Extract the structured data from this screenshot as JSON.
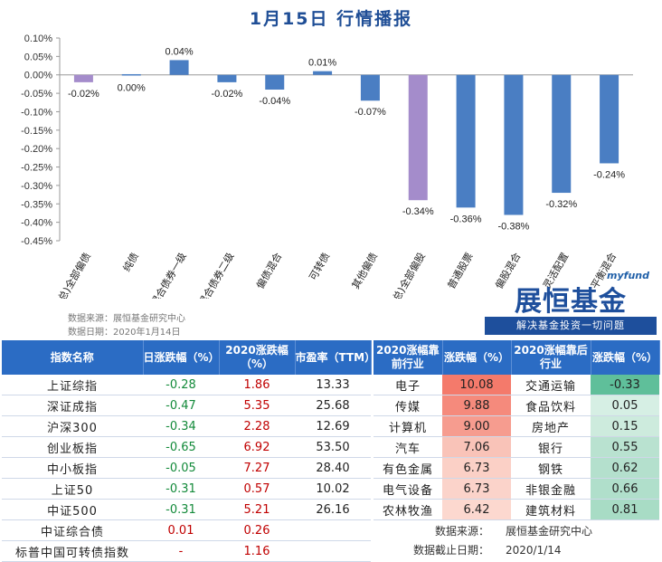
{
  "title": "1月15日  行情播报",
  "source_label": "数据来源：展恒基金研究中心",
  "date_label": "数据日期：2020年1月14日",
  "logo": {
    "small": "myfund",
    "big": "展恒基金",
    "slogan": "解决基金投资一切问题"
  },
  "chart_data": {
    "type": "bar",
    "categories": [
      "(总)全部偏债",
      "纯债",
      "混合债券一级",
      "混合债券二级",
      "偏债混合",
      "可转债",
      "其他偏债",
      "(总)全部偏股",
      "普通股票",
      "偏股混合",
      "灵活配置",
      "平衡混合"
    ],
    "values": [
      -0.02,
      0.0,
      0.04,
      -0.02,
      -0.04,
      0.01,
      -0.07,
      -0.34,
      -0.36,
      -0.38,
      -0.32,
      -0.24
    ],
    "value_labels": [
      "-0.02%",
      "0.00%",
      "0.04%",
      "-0.02%",
      "-0.04%",
      "0.01%",
      "-0.07%",
      "-0.34%",
      "-0.36%",
      "-0.38%",
      "-0.32%",
      "-0.24%"
    ],
    "highlight_indices": [
      0,
      7
    ],
    "colors": {
      "bar": "#4a7ec3",
      "highlight": "#a48ccb",
      "axis": "#999999"
    },
    "ylim": [
      -0.45,
      0.1
    ],
    "yticks": [
      0.1,
      0.05,
      0.0,
      -0.05,
      -0.1,
      -0.15,
      -0.2,
      -0.25,
      -0.3,
      -0.35,
      -0.4,
      -0.45
    ],
    "ytick_labels": [
      "0.10%",
      "0.05%",
      "0.00%",
      "-0.05%",
      "-0.10%",
      "-0.15%",
      "-0.20%",
      "-0.25%",
      "-0.30%",
      "-0.35%",
      "-0.40%",
      "-0.45%"
    ],
    "grid": false
  },
  "index_table": {
    "headers": [
      "指数名称",
      "日涨跌幅（%）",
      "2020涨跌幅（%）",
      "市盈率（TTM）"
    ],
    "rows": [
      {
        "name": "上证综指",
        "day": "-0.28",
        "ytd": "1.86",
        "pe": "13.33"
      },
      {
        "name": "深证成指",
        "day": "-0.47",
        "ytd": "5.35",
        "pe": "25.68"
      },
      {
        "name": "沪深300",
        "day": "-0.34",
        "ytd": "2.28",
        "pe": "12.69"
      },
      {
        "name": "创业板指",
        "day": "-0.65",
        "ytd": "6.92",
        "pe": "53.50"
      },
      {
        "name": "中小板指",
        "day": "-0.05",
        "ytd": "7.27",
        "pe": "28.40"
      },
      {
        "name": "上证50",
        "day": "-0.31",
        "ytd": "0.57",
        "pe": "10.02"
      },
      {
        "name": "中证500",
        "day": "-0.31",
        "ytd": "5.21",
        "pe": "26.16"
      },
      {
        "name": "中证综合债",
        "day": "0.01",
        "ytd": "0.26",
        "pe": ""
      },
      {
        "name": "标普中国可转债指数",
        "day": "-",
        "ytd": "1.16",
        "pe": ""
      }
    ]
  },
  "industry_table": {
    "headers": [
      "2020涨幅靠前行业",
      "涨跌幅（%）",
      "2020涨幅靠后行业",
      "涨跌幅（%）"
    ],
    "rows": [
      {
        "top": "电子",
        "top_val": "10.08",
        "bottom": "交通运输",
        "bottom_val": "-0.33"
      },
      {
        "top": "传媒",
        "top_val": "9.88",
        "bottom": "食品饮料",
        "bottom_val": "0.05"
      },
      {
        "top": "计算机",
        "top_val": "9.00",
        "bottom": "房地产",
        "bottom_val": "0.15"
      },
      {
        "top": "汽车",
        "top_val": "7.06",
        "bottom": "银行",
        "bottom_val": "0.55"
      },
      {
        "top": "有色金属",
        "top_val": "6.73",
        "bottom": "钢铁",
        "bottom_val": "0.62"
      },
      {
        "top": "电气设备",
        "top_val": "6.73",
        "bottom": "非银金融",
        "bottom_val": "0.66"
      },
      {
        "top": "农林牧渔",
        "top_val": "6.42",
        "bottom": "建筑材料",
        "bottom_val": "0.81"
      }
    ],
    "top_colors": [
      "#f47a6b",
      "#f58a7c",
      "#f69c8f",
      "#f9c3b8",
      "#fbd0c6",
      "#fbd3ca",
      "#fcd8cf"
    ],
    "bottom_colors": [
      "#5fbf9a",
      "#d6efe4",
      "#cdebdd",
      "#b9e2d0",
      "#b4e0cd",
      "#b0dfcb",
      "#a8dcc5"
    ],
    "footer": {
      "source_key": "数据来源：",
      "source_val": "展恒基金研究中心",
      "date_key": "数据截止日期：",
      "date_val": "2020/1/14"
    }
  }
}
